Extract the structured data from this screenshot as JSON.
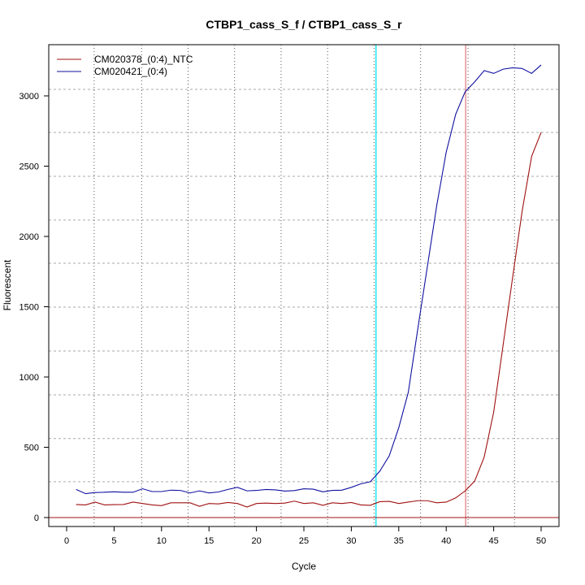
{
  "chart_data": {
    "type": "line",
    "title": "CTBP1_cass_S_f / CTBP1_cass_S_r",
    "xlabel": "Cycle",
    "ylabel": "Fluorescent",
    "xlim": [
      -2,
      52
    ],
    "ylim": [
      -60,
      3360
    ],
    "xticks": [
      0,
      5,
      10,
      15,
      20,
      25,
      30,
      35,
      40,
      45,
      50
    ],
    "yticks": [
      0,
      500,
      1000,
      1500,
      2000,
      2500,
      3000
    ],
    "grid_x": [
      2.9,
      7.9,
      12.8,
      17.7,
      22.6,
      27.5,
      32.4,
      37.3,
      42.3,
      47.2
    ],
    "grid_y": [
      255,
      562,
      873,
      1185,
      1497,
      1809,
      2116,
      2428,
      2740,
      3046
    ],
    "threshold": 0,
    "vlines": [
      {
        "x": 32.6,
        "color": "#00e5ee"
      },
      {
        "x": 42.05,
        "color": "#e08080"
      }
    ],
    "legend_position": "top-left",
    "x": [
      1,
      2,
      3,
      4,
      5,
      6,
      7,
      8,
      9,
      10,
      11,
      12,
      13,
      14,
      15,
      16,
      17,
      18,
      19,
      20,
      21,
      22,
      23,
      24,
      25,
      26,
      27,
      28,
      29,
      30,
      31,
      32,
      33,
      34,
      35,
      36,
      37,
      38,
      39,
      40,
      41,
      42,
      43,
      44,
      45,
      46,
      47,
      48,
      49,
      50
    ],
    "series": [
      {
        "name": "CM020378_(0:4)_NTC",
        "color": "#a01010",
        "values": [
          93,
          90,
          110,
          90,
          92,
          93,
          110,
          100,
          90,
          85,
          105,
          105,
          105,
          80,
          100,
          97,
          107,
          100,
          75,
          100,
          103,
          100,
          103,
          117,
          100,
          105,
          87,
          105,
          100,
          107,
          90,
          87,
          113,
          115,
          100,
          110,
          120,
          120,
          105,
          110,
          140,
          190,
          260,
          430,
          750,
          1230,
          1710,
          2180,
          2570,
          2740
        ]
      },
      {
        "name": "CM020421_(0:4)",
        "color": "#1010a0",
        "values": [
          200,
          170,
          178,
          180,
          183,
          180,
          180,
          205,
          185,
          185,
          195,
          193,
          175,
          190,
          175,
          182,
          200,
          215,
          190,
          193,
          200,
          197,
          188,
          192,
          205,
          202,
          183,
          193,
          195,
          215,
          240,
          255,
          330,
          440,
          640,
          890,
          1340,
          1780,
          2220,
          2600,
          2870,
          3030,
          3100,
          3180,
          3160,
          3190,
          3200,
          3195,
          3160,
          3220
        ]
      }
    ]
  }
}
